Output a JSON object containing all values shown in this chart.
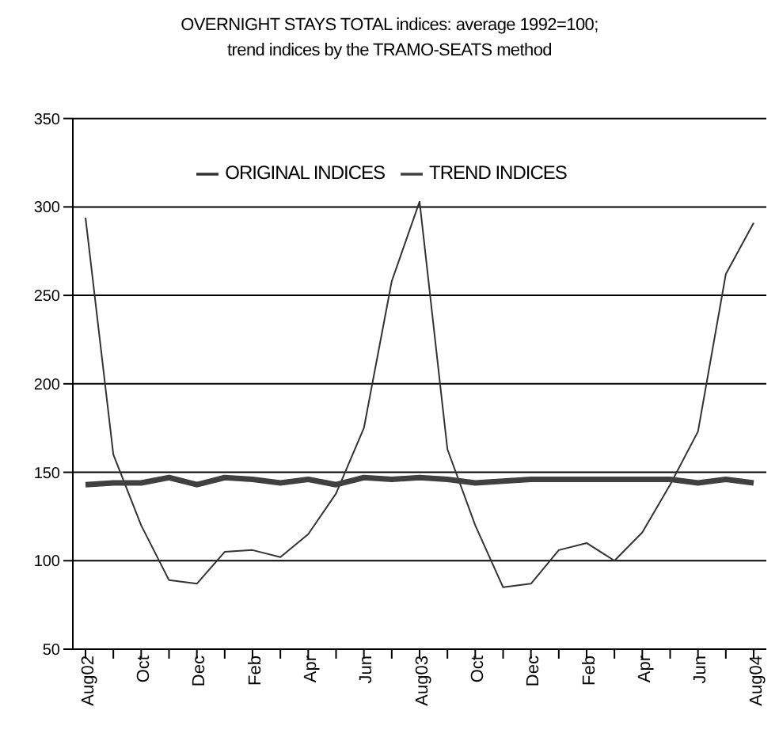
{
  "chart_data": {
    "type": "line",
    "title": "OVERNIGHT STAYS TOTAL indices: average 1992=100;\ntrend indices by the TRAMO-SEATS method",
    "categories": [
      "Aug02",
      null,
      "Oct",
      null,
      "Dec",
      null,
      "Feb",
      null,
      "Apr",
      null,
      "Jun",
      null,
      "Aug03",
      null,
      "Oct",
      null,
      "Dec",
      null,
      "Feb",
      null,
      "Apr",
      null,
      "Jun",
      null,
      "Aug04"
    ],
    "series": [
      {
        "name": "ORIGINAL INDICES",
        "color": "#333333",
        "values": [
          294,
          160,
          120,
          89,
          87,
          105,
          106,
          102,
          115,
          138,
          175,
          258,
          303,
          163,
          120,
          85,
          87,
          106,
          110,
          100,
          116,
          143,
          173,
          262,
          291
        ]
      },
      {
        "name": "TREND INDICES",
        "color": "#404040",
        "values": [
          143,
          144,
          144,
          147,
          143,
          147,
          146,
          144,
          146,
          143,
          147,
          146,
          147,
          146,
          144,
          145,
          146,
          146,
          146,
          146,
          146,
          146,
          144,
          146,
          144
        ]
      }
    ],
    "ylim": [
      50,
      350
    ],
    "yticks": [
      50,
      100,
      150,
      200,
      250,
      300,
      350
    ],
    "grid": "y",
    "legend": "top",
    "marker": "none",
    "line_style": "solid"
  }
}
